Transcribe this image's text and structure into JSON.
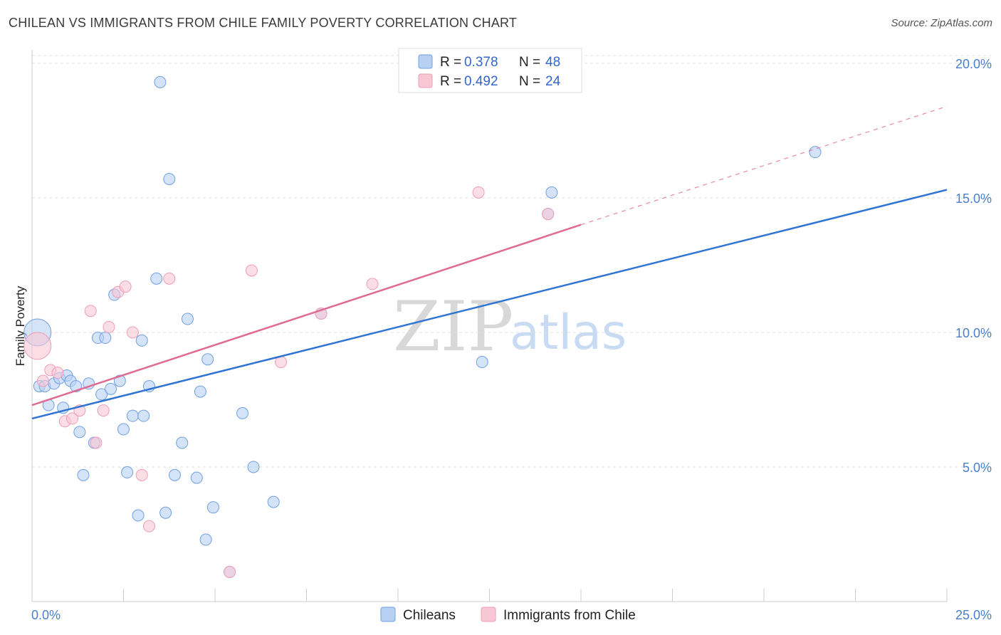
{
  "chart_data": {
    "type": "scatter",
    "title": "CHILEAN VS IMMIGRANTS FROM CHILE FAMILY POVERTY CORRELATION CHART",
    "source": "Source: ZipAtlas.com",
    "ylabel": "Family Poverty",
    "xlabel": "",
    "xlim": [
      0,
      25
    ],
    "ylim": [
      0,
      20.5
    ],
    "x_tick_labels": [
      "0.0%",
      "25.0%"
    ],
    "y_ticks": [
      5,
      10,
      15,
      20
    ],
    "y_tick_labels": [
      "5.0%",
      "10.0%",
      "15.0%",
      "20.0%"
    ],
    "legend": {
      "position": "top-center",
      "entries": [
        {
          "r_label": "R =",
          "r_value": "0.378",
          "n_label": "N =",
          "n_value": "48"
        },
        {
          "r_label": "R =",
          "r_value": "0.492",
          "n_label": "N =",
          "n_value": "24"
        }
      ]
    },
    "series": [
      {
        "name": "Chileans",
        "color": "#6fa0e3",
        "fill": "#b8d0f2",
        "trend": {
          "x0": 0,
          "y0": 6.8,
          "x1": 25,
          "y1": 15.3,
          "color": "#2f74d0"
        },
        "points": [
          {
            "x": 0.2,
            "y": 8.0
          },
          {
            "x": 0.35,
            "y": 8.0
          },
          {
            "x": 0.45,
            "y": 7.3
          },
          {
            "x": 0.6,
            "y": 8.1
          },
          {
            "x": 0.75,
            "y": 8.3
          },
          {
            "x": 0.85,
            "y": 7.2
          },
          {
            "x": 0.95,
            "y": 8.4
          },
          {
            "x": 1.05,
            "y": 8.2
          },
          {
            "x": 1.2,
            "y": 8.0
          },
          {
            "x": 1.3,
            "y": 6.3
          },
          {
            "x": 1.4,
            "y": 4.7
          },
          {
            "x": 1.55,
            "y": 8.1
          },
          {
            "x": 1.7,
            "y": 5.9
          },
          {
            "x": 1.8,
            "y": 9.8
          },
          {
            "x": 1.9,
            "y": 7.7
          },
          {
            "x": 2.0,
            "y": 9.8
          },
          {
            "x": 2.15,
            "y": 7.9
          },
          {
            "x": 2.25,
            "y": 11.4
          },
          {
            "x": 2.4,
            "y": 8.2
          },
          {
            "x": 2.5,
            "y": 6.4
          },
          {
            "x": 2.6,
            "y": 4.8
          },
          {
            "x": 2.75,
            "y": 6.9
          },
          {
            "x": 2.9,
            "y": 3.2
          },
          {
            "x": 3.0,
            "y": 9.7
          },
          {
            "x": 3.05,
            "y": 6.9
          },
          {
            "x": 3.2,
            "y": 8.0
          },
          {
            "x": 3.4,
            "y": 12.0
          },
          {
            "x": 3.5,
            "y": 19.3
          },
          {
            "x": 3.65,
            "y": 3.3
          },
          {
            "x": 3.75,
            "y": 15.7
          },
          {
            "x": 3.9,
            "y": 4.7
          },
          {
            "x": 4.1,
            "y": 5.9
          },
          {
            "x": 4.25,
            "y": 10.5
          },
          {
            "x": 4.5,
            "y": 4.6
          },
          {
            "x": 4.6,
            "y": 7.8
          },
          {
            "x": 4.75,
            "y": 2.3
          },
          {
            "x": 4.8,
            "y": 9.0
          },
          {
            "x": 4.95,
            "y": 3.5
          },
          {
            "x": 5.4,
            "y": 1.1
          },
          {
            "x": 5.75,
            "y": 7.0
          },
          {
            "x": 6.05,
            "y": 5.0
          },
          {
            "x": 6.6,
            "y": 3.7
          },
          {
            "x": 7.9,
            "y": 10.7
          },
          {
            "x": 12.3,
            "y": 8.9
          },
          {
            "x": 14.1,
            "y": 14.4
          },
          {
            "x": 14.2,
            "y": 15.2
          },
          {
            "x": 21.4,
            "y": 16.7
          },
          {
            "x": 0.15,
            "y": 10.0
          }
        ]
      },
      {
        "name": "Immigrants from Chile",
        "color": "#ef9db6",
        "fill": "#f8c6d5",
        "trend": {
          "x0": 0,
          "y0": 7.3,
          "x1": 15,
          "y1": 14.0,
          "color": "#e06a93",
          "dashed_to": {
            "x": 25,
            "y": 18.4
          }
        },
        "points": [
          {
            "x": 0.15,
            "y": 9.5
          },
          {
            "x": 0.3,
            "y": 8.2
          },
          {
            "x": 0.5,
            "y": 8.6
          },
          {
            "x": 0.7,
            "y": 8.5
          },
          {
            "x": 0.9,
            "y": 6.7
          },
          {
            "x": 1.1,
            "y": 6.8
          },
          {
            "x": 1.3,
            "y": 7.1
          },
          {
            "x": 1.6,
            "y": 10.8
          },
          {
            "x": 1.75,
            "y": 5.9
          },
          {
            "x": 1.95,
            "y": 7.1
          },
          {
            "x": 2.1,
            "y": 10.2
          },
          {
            "x": 2.35,
            "y": 11.5
          },
          {
            "x": 2.55,
            "y": 11.7
          },
          {
            "x": 2.75,
            "y": 10.0
          },
          {
            "x": 3.0,
            "y": 4.7
          },
          {
            "x": 3.2,
            "y": 2.8
          },
          {
            "x": 3.75,
            "y": 12.0
          },
          {
            "x": 5.4,
            "y": 1.1
          },
          {
            "x": 6.0,
            "y": 12.3
          },
          {
            "x": 6.8,
            "y": 8.9
          },
          {
            "x": 7.9,
            "y": 10.7
          },
          {
            "x": 9.3,
            "y": 11.8
          },
          {
            "x": 12.2,
            "y": 15.2
          },
          {
            "x": 14.1,
            "y": 14.4
          }
        ]
      }
    ]
  }
}
